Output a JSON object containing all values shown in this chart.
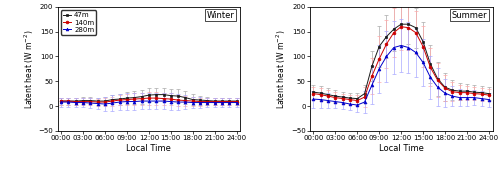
{
  "time_labels": [
    "00:00",
    "03:00",
    "06:00",
    "09:00",
    "12:00",
    "15:00",
    "18:00",
    "21:00",
    "24:00"
  ],
  "time_hours": [
    0,
    1,
    2,
    3,
    4,
    5,
    6,
    7,
    8,
    9,
    10,
    11,
    12,
    13,
    14,
    15,
    16,
    17,
    18,
    19,
    20,
    21,
    22,
    23,
    24
  ],
  "winter": {
    "h47": [
      10,
      10,
      10,
      11,
      11,
      10,
      10,
      13,
      14,
      16,
      17,
      19,
      22,
      23,
      23,
      21,
      20,
      17,
      13,
      12,
      11,
      10,
      10,
      10,
      10
    ],
    "h140": [
      10,
      10,
      9,
      9,
      9,
      8,
      8,
      10,
      12,
      13,
      14,
      15,
      16,
      16,
      15,
      14,
      12,
      11,
      10,
      9,
      9,
      9,
      9,
      9,
      9
    ],
    "h280": [
      8,
      8,
      7,
      7,
      6,
      5,
      4,
      6,
      8,
      9,
      9,
      10,
      10,
      10,
      10,
      9,
      8,
      8,
      7,
      7,
      7,
      7,
      7,
      7,
      7
    ],
    "h47_err": [
      7,
      7,
      7,
      7,
      7,
      7,
      8,
      9,
      11,
      12,
      13,
      14,
      14,
      14,
      14,
      14,
      14,
      13,
      11,
      9,
      8,
      7,
      7,
      7,
      7
    ],
    "h140_err": [
      7,
      7,
      7,
      7,
      7,
      7,
      8,
      9,
      10,
      11,
      12,
      12,
      13,
      13,
      12,
      12,
      11,
      10,
      9,
      8,
      7,
      7,
      7,
      7,
      7
    ],
    "h280_err": [
      9,
      9,
      9,
      9,
      10,
      12,
      15,
      16,
      17,
      17,
      17,
      17,
      17,
      17,
      17,
      17,
      16,
      14,
      12,
      11,
      9,
      9,
      9,
      9,
      9
    ]
  },
  "summer": {
    "h47": [
      28,
      26,
      23,
      20,
      18,
      16,
      15,
      25,
      80,
      120,
      140,
      155,
      165,
      165,
      158,
      130,
      85,
      55,
      38,
      32,
      30,
      30,
      28,
      27,
      25
    ],
    "h140": [
      25,
      23,
      20,
      17,
      15,
      13,
      11,
      18,
      60,
      95,
      125,
      148,
      160,
      158,
      148,
      120,
      78,
      52,
      36,
      29,
      27,
      27,
      25,
      24,
      22
    ],
    "h280": [
      14,
      13,
      11,
      9,
      7,
      4,
      2,
      8,
      42,
      75,
      100,
      118,
      122,
      118,
      108,
      88,
      58,
      38,
      26,
      20,
      17,
      17,
      17,
      15,
      13
    ],
    "h47_err": [
      14,
      14,
      13,
      12,
      11,
      11,
      12,
      18,
      30,
      42,
      44,
      44,
      42,
      40,
      40,
      40,
      38,
      34,
      28,
      20,
      17,
      15,
      14,
      14,
      13
    ],
    "h140_err": [
      13,
      13,
      12,
      11,
      10,
      10,
      11,
      20,
      36,
      46,
      48,
      50,
      48,
      45,
      44,
      42,
      38,
      34,
      26,
      19,
      15,
      14,
      13,
      13,
      12
    ],
    "h280_err": [
      17,
      16,
      15,
      14,
      13,
      13,
      15,
      23,
      38,
      48,
      52,
      54,
      54,
      52,
      50,
      47,
      43,
      38,
      28,
      20,
      17,
      16,
      15,
      15,
      14
    ]
  },
  "ylim": [
    -50,
    200
  ],
  "yticks": [
    -50,
    0,
    50,
    100,
    150,
    200
  ],
  "colors": {
    "h47": "#1a1a1a",
    "h140": "#cc0000",
    "h280": "#0000cc"
  },
  "colors_err": {
    "h47": "#aaaaaa",
    "h140": "#ffaaaa",
    "h280": "#aaaaff"
  },
  "marker_h47": "s",
  "marker_h140": "o",
  "marker_h280": "^",
  "markersize": 2.0,
  "ylabel": "Latent heat (W m$^{-2}$)",
  "xlabel": "Local Time",
  "winter_label": "Winter",
  "summer_label": "Summer",
  "legend_labels": [
    "47m",
    "140m",
    "280m"
  ],
  "linewidth": 0.7,
  "capsize": 1.2,
  "elinewidth": 0.5
}
